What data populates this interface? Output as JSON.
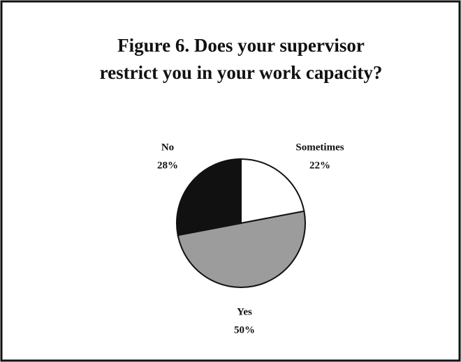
{
  "chart_data": {
    "type": "pie",
    "title": [
      "Figure 6.  Does your supervisor",
      "restrict you in your work capacity?"
    ],
    "categories": [
      "Sometimes",
      "Yes",
      "No"
    ],
    "values": [
      22,
      50,
      28
    ],
    "value_labels": [
      "22%",
      "50%",
      "28%"
    ],
    "colors": [
      "#ffffff",
      "#9c9c9c",
      "#111111"
    ]
  }
}
